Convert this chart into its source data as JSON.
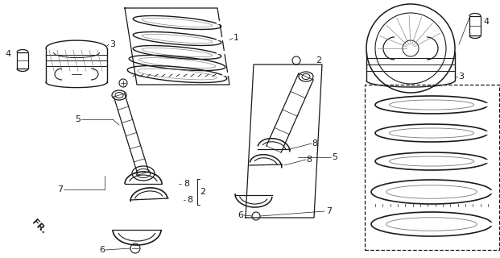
{
  "bg_color": "#ffffff",
  "line_color": "#1a1a1a",
  "fig_width": 6.21,
  "fig_height": 3.2,
  "dpi": 100,
  "xlim": [
    0,
    621
  ],
  "ylim": [
    0,
    320
  ]
}
